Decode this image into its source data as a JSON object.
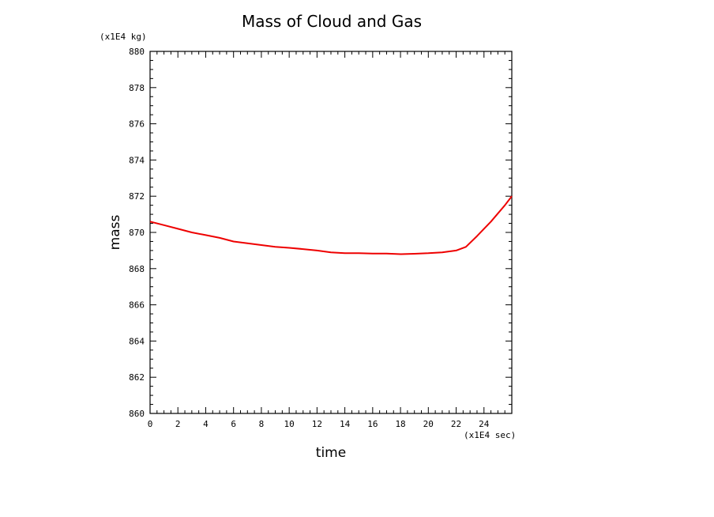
{
  "chart_data": {
    "type": "line",
    "title": "Mass of Cloud and Gas",
    "xlabel": "time",
    "ylabel": "mass",
    "x_unit": "(x1E4 sec)",
    "y_unit": "(x1E4 kg)",
    "xlim": [
      0,
      26
    ],
    "ylim": [
      860,
      880
    ],
    "x_ticks": [
      0,
      2,
      4,
      6,
      8,
      10,
      12,
      14,
      16,
      18,
      20,
      22,
      24
    ],
    "y_ticks": [
      860,
      862,
      864,
      866,
      868,
      870,
      872,
      874,
      876,
      878,
      880
    ],
    "grid": false,
    "series": [
      {
        "color": "#ee0000",
        "x": [
          0,
          1,
          2,
          3,
          4,
          5,
          6,
          7,
          8,
          9,
          10,
          11,
          12,
          13,
          14,
          15,
          16,
          17,
          18,
          19,
          20,
          21,
          22,
          22.7,
          23.5,
          24.5,
          25.5,
          26
        ],
        "y": [
          870.6,
          870.4,
          870.2,
          870.0,
          869.85,
          869.7,
          869.5,
          869.4,
          869.3,
          869.2,
          869.15,
          869.08,
          869.0,
          868.9,
          868.85,
          868.85,
          868.83,
          868.83,
          868.8,
          868.82,
          868.85,
          868.9,
          869.0,
          869.2,
          869.8,
          870.6,
          871.5,
          872.0
        ]
      }
    ]
  }
}
